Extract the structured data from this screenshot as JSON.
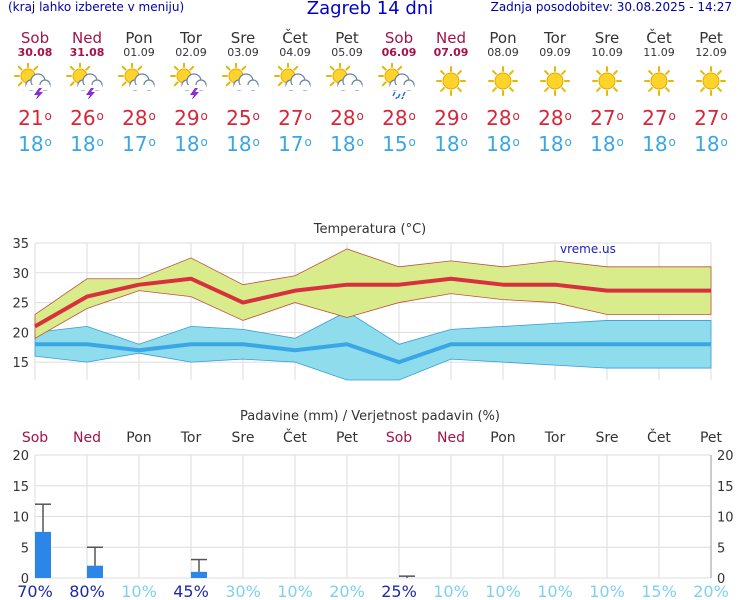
{
  "header": {
    "menu_hint": "(kraj lahko izberete v meniju)",
    "title": "Zagreb 14 dni",
    "updated": "Zadnja posodobitev: 30.08.2025 - 14:27"
  },
  "days": [
    {
      "name": "Sob",
      "date": "30.08",
      "weekend": true,
      "icon": "sun-cloud-lightning-icon",
      "max": "21",
      "min": "18"
    },
    {
      "name": "Ned",
      "date": "31.08",
      "weekend": true,
      "icon": "sun-cloud-lightning-icon",
      "max": "26",
      "min": "18"
    },
    {
      "name": "Pon",
      "date": "01.09",
      "weekend": false,
      "icon": "sun-cloud-icon",
      "max": "28",
      "min": "17"
    },
    {
      "name": "Tor",
      "date": "02.09",
      "weekend": false,
      "icon": "sun-cloud-lightning-icon",
      "max": "29",
      "min": "18"
    },
    {
      "name": "Sre",
      "date": "03.09",
      "weekend": false,
      "icon": "sun-cloud-icon",
      "max": "25",
      "min": "18"
    },
    {
      "name": "Čet",
      "date": "04.09",
      "weekend": false,
      "icon": "sun-cloud-icon",
      "max": "27",
      "min": "17"
    },
    {
      "name": "Pet",
      "date": "05.09",
      "weekend": false,
      "icon": "sun-cloud-icon",
      "max": "28",
      "min": "18"
    },
    {
      "name": "Sob",
      "date": "06.09",
      "weekend": true,
      "icon": "sun-cloud-rain-icon",
      "max": "28",
      "min": "15"
    },
    {
      "name": "Ned",
      "date": "07.09",
      "weekend": true,
      "icon": "sun-icon",
      "max": "29",
      "min": "18"
    },
    {
      "name": "Pon",
      "date": "08.09",
      "weekend": false,
      "icon": "sun-icon",
      "max": "28",
      "min": "18"
    },
    {
      "name": "Tor",
      "date": "09.09",
      "weekend": false,
      "icon": "sun-icon",
      "max": "28",
      "min": "18"
    },
    {
      "name": "Sre",
      "date": "10.09",
      "weekend": false,
      "icon": "sun-icon",
      "max": "27",
      "min": "18"
    },
    {
      "name": "Čet",
      "date": "11.09",
      "weekend": false,
      "icon": "sun-icon",
      "max": "27",
      "min": "18"
    },
    {
      "name": "Pet",
      "date": "12.09",
      "weekend": false,
      "icon": "sun-icon",
      "max": "27",
      "min": "18"
    }
  ],
  "colors": {
    "max_line": "#d9303e",
    "max_band": "#d8ec8c",
    "min_line": "#3aa6e6",
    "min_band": "#8fdcec",
    "weekend": "#a3124a",
    "bar": "#2c86e8",
    "pct_dark": "#1a2aa8",
    "pct_light": "#7fd0f0"
  },
  "chart_data": [
    {
      "type": "line",
      "title": "Temperatura (°C)",
      "watermark": "vreme.us",
      "ylim": [
        12,
        35
      ],
      "yticks": [
        15,
        20,
        25,
        30,
        35
      ],
      "series": [
        {
          "name": "",
          "role": "max_high",
          "values": [
            23,
            29,
            29,
            32.5,
            28,
            29.5,
            34,
            31,
            32,
            31,
            32,
            31,
            31,
            31
          ]
        },
        {
          "name": "",
          "role": "max",
          "values": [
            21,
            26,
            28,
            29,
            25,
            27,
            28,
            28,
            29,
            28,
            28,
            27,
            27,
            27
          ]
        },
        {
          "name": "",
          "role": "max_low",
          "values": [
            19,
            24,
            27,
            26,
            22,
            25,
            22.5,
            25,
            26.5,
            25.5,
            25,
            23,
            23,
            23
          ]
        },
        {
          "name": "",
          "role": "min_high",
          "values": [
            20,
            21,
            18,
            21,
            20.5,
            19,
            23.5,
            18,
            20.5,
            21,
            21.5,
            22,
            22,
            22
          ]
        },
        {
          "name": "",
          "role": "min",
          "values": [
            18,
            18,
            17,
            18,
            18,
            17,
            18,
            15,
            18,
            18,
            18,
            18,
            18,
            18
          ]
        },
        {
          "name": "",
          "role": "min_low",
          "values": [
            16,
            15,
            16.5,
            15,
            15.5,
            15,
            12,
            12,
            15.5,
            15,
            14.5,
            14,
            14,
            14
          ]
        }
      ]
    },
    {
      "type": "bar",
      "title": "Padavine (mm) / Verjetnost padavin (%)",
      "ylim": [
        0,
        20
      ],
      "yticks": [
        0,
        5,
        10,
        15,
        20
      ],
      "categories": [
        "Sob",
        "Ned",
        "Pon",
        "Tor",
        "Sre",
        "Čet",
        "Pet",
        "Sob",
        "Ned",
        "Pon",
        "Tor",
        "Sre",
        "Čet",
        "Pet"
      ],
      "weekend": [
        true,
        true,
        false,
        false,
        false,
        false,
        false,
        true,
        true,
        false,
        false,
        false,
        false,
        false
      ],
      "values": [
        7.5,
        2,
        0,
        1,
        0,
        0,
        0,
        0,
        0,
        0,
        0,
        0,
        0,
        0
      ],
      "error_high": [
        12,
        5,
        0,
        3,
        0,
        0,
        0,
        0.3,
        0,
        0,
        0,
        0,
        0,
        0
      ],
      "probability": [
        "70%",
        "80%",
        "10%",
        "45%",
        "30%",
        "10%",
        "20%",
        "25%",
        "10%",
        "10%",
        "10%",
        "10%",
        "15%",
        "20%"
      ],
      "probability_strong": [
        true,
        true,
        false,
        true,
        false,
        false,
        false,
        true,
        false,
        false,
        false,
        false,
        false,
        false
      ]
    }
  ]
}
